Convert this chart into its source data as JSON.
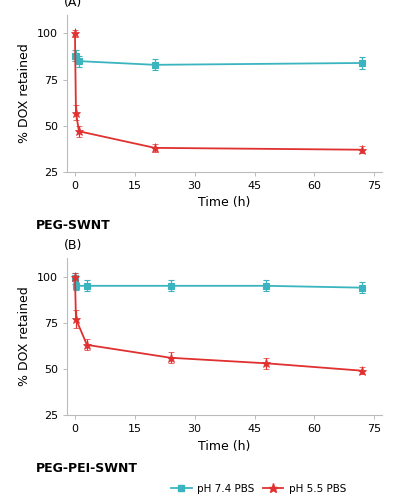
{
  "panel_A": {
    "label": "(A)",
    "subtitle": "PEG-SWNT",
    "ph74": {
      "x": [
        0,
        0.25,
        1,
        20,
        72
      ],
      "y": [
        88,
        88,
        85,
        83,
        84
      ],
      "yerr": [
        3,
        3,
        3,
        3,
        3
      ],
      "color": "#3ab5c0",
      "marker": "s",
      "label": "pH 7.4 PBS"
    },
    "ph55": {
      "x": [
        0,
        0.25,
        1,
        20,
        72
      ],
      "y": [
        100,
        57,
        47,
        38,
        37
      ],
      "yerr": [
        2,
        4,
        3,
        2,
        2
      ],
      "color": "#e03030",
      "marker": "*",
      "label": "pH 5.5 PBS"
    },
    "ylim": [
      25,
      110
    ],
    "yticks": [
      25,
      50,
      75,
      100
    ],
    "xlim": [
      -2,
      77
    ],
    "xticks": [
      0,
      15,
      30,
      45,
      60,
      75
    ],
    "xlabel": "Time (h)",
    "ylabel": "% DOX retained"
  },
  "panel_B": {
    "label": "(B)",
    "subtitle": "PEG-PEI-SWNT",
    "ph74": {
      "x": [
        0,
        0.25,
        3,
        24,
        48,
        72
      ],
      "y": [
        99,
        95,
        95,
        95,
        95,
        94
      ],
      "yerr": [
        3,
        2,
        3,
        3,
        3,
        3
      ],
      "color": "#3ab5c0",
      "marker": "s",
      "label": "pH 7.4 PBS"
    },
    "ph55": {
      "x": [
        0,
        0.25,
        3,
        24,
        48,
        72
      ],
      "y": [
        100,
        77,
        63,
        56,
        53,
        49
      ],
      "yerr": [
        2,
        5,
        3,
        3,
        3,
        2
      ],
      "color": "#e03030",
      "marker": "*",
      "label": "pH 5.5 PBS"
    },
    "ylim": [
      25,
      110
    ],
    "yticks": [
      25,
      50,
      75,
      100
    ],
    "xlim": [
      -2,
      77
    ],
    "xticks": [
      0,
      15,
      30,
      45,
      60,
      75
    ],
    "xlabel": "Time (h)",
    "ylabel": "% DOX retained"
  },
  "legend": {
    "ph74_label": "pH 7.4 PBS",
    "ph55_label": "pH 5.5 PBS",
    "color_74": "#3ab5c0",
    "color_55": "#e03030"
  },
  "bg_color": "#ffffff",
  "label_fontsize": 9,
  "tick_fontsize": 8,
  "axis_label_fontsize": 9,
  "subtitle_fontsize": 9
}
